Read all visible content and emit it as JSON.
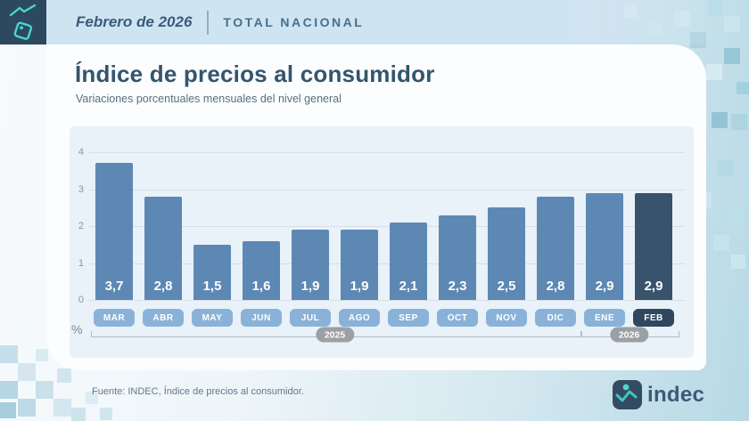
{
  "header": {
    "period": "Febrero de 2026",
    "scope": "TOTAL NACIONAL"
  },
  "title": "Índice de precios al consumidor",
  "subtitle": "Variaciones porcentuales mensuales del nivel general",
  "chart_data": {
    "type": "bar",
    "categories": [
      "MAR",
      "ABR",
      "MAY",
      "JUN",
      "JUL",
      "AGO",
      "SEP",
      "OCT",
      "NOV",
      "DIC",
      "ENE",
      "FEB"
    ],
    "values": [
      3.7,
      2.8,
      1.5,
      1.6,
      1.9,
      1.9,
      2.1,
      2.3,
      2.5,
      2.8,
      2.9,
      2.9
    ],
    "value_labels": [
      "3,7",
      "2,8",
      "1,5",
      "1,6",
      "1,9",
      "1,9",
      "2,1",
      "2,3",
      "2,5",
      "2,8",
      "2,9",
      "2,9"
    ],
    "highlight_index": 11,
    "ylabel": "%",
    "ylim": [
      0,
      4
    ],
    "yticks": [
      0,
      1,
      2,
      3,
      4
    ],
    "grid": true,
    "year_groups": [
      {
        "label": "2025",
        "from": 0,
        "to": 9
      },
      {
        "label": "2026",
        "from": 10,
        "to": 11
      }
    ],
    "colors": {
      "bar": "#5d88b4",
      "bar_highlight": "#3a536d",
      "month_pill": "#8ab2d8",
      "month_pill_highlight": "#2f4860",
      "value_text": "#ffffff"
    }
  },
  "footer": {
    "source": "Fuente: INDEC, Índice de precios al consumidor.",
    "logo_text": "indec"
  },
  "brand": {
    "accent_teal": "#49d7ce",
    "dark_navy": "#2d4960"
  }
}
